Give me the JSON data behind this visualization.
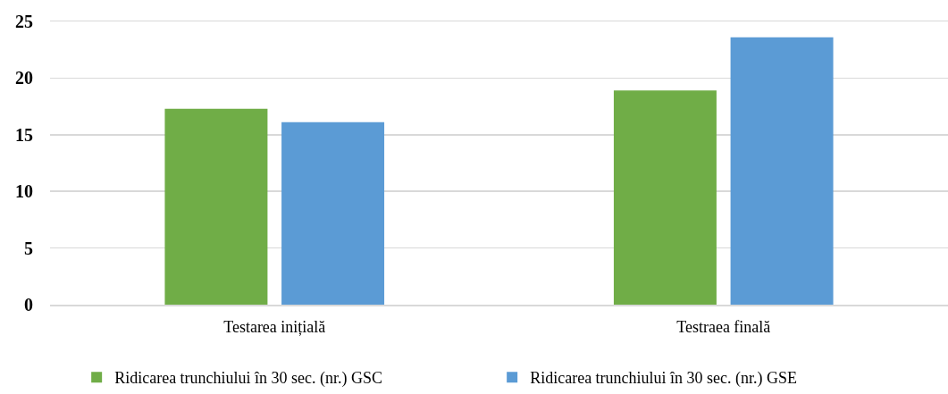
{
  "chart_data": {
    "type": "bar",
    "categories": [
      "Testarea inițială",
      "Testraea finală"
    ],
    "series": [
      {
        "name": "Ridicarea trunchiului în 30 sec. (nr.) GSC",
        "color": "#70ad47",
        "values": [
          17.3,
          18.9
        ]
      },
      {
        "name": "Ridicarea trunchiului în 30 sec. (nr.) GSE",
        "color": "#5b9bd5",
        "values": [
          16.1,
          23.6
        ]
      }
    ],
    "ylim": [
      0,
      25
    ],
    "yticks": [
      0,
      5,
      10,
      15,
      20,
      25
    ],
    "grid": "y",
    "legend": "bottom"
  }
}
